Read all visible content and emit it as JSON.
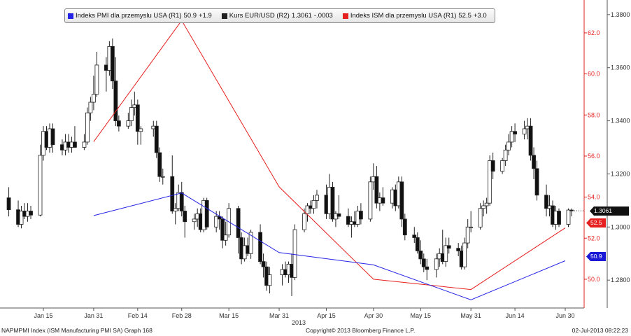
{
  "chart_data": {
    "type": "candlestick+line",
    "legend": [
      {
        "label": "Indeks PMI dla przemyslu USA (R1)",
        "value": "50.9",
        "change": "+1.9",
        "color": "#2323e6"
      },
      {
        "label": "Kurs EUR/USD (R2)",
        "value": "1.3061",
        "change": "-.0003",
        "color": "#222222"
      },
      {
        "label": "Indeks ISM dla przemyslu USA (R1)",
        "value": "52.5",
        "change": "+3.0",
        "color": "#e62020"
      }
    ],
    "x_ticks": [
      "Jan 15",
      "Jan 31",
      "Feb 14",
      "Feb 28",
      "Mar 15",
      "Mar 31",
      "Apr 15",
      "Apr 30",
      "May 15",
      "May 31",
      "Jun 14",
      "Jun 30"
    ],
    "x_year_label": "2013",
    "axis_r1": {
      "ylim": [
        48.6,
        63.6
      ],
      "ticks": [
        "50.0",
        "52.0",
        "54.0",
        "56.0",
        "58.0",
        "60.0",
        "62.0"
      ],
      "color": "#e62020"
    },
    "axis_r2": {
      "ylim": [
        1.2695,
        1.3855
      ],
      "ticks": [
        "1.2800",
        "1.3000",
        "1.3200",
        "1.3400",
        "1.3600",
        "1.3800"
      ]
    },
    "pmi_series": {
      "name": "Indeks PMI dla przemyslu USA (R1)",
      "x": [
        "2013-01-31",
        "2013-02-28",
        "2013-03-31",
        "2013-04-30",
        "2013-05-31",
        "2013-06-30"
      ],
      "y": [
        53.1,
        54.2,
        51.3,
        50.7,
        49.0,
        50.9
      ]
    },
    "ism_series": {
      "name": "Indeks ISM dla przemyslu USA (R1)",
      "x": [
        "2013-01-31",
        "2013-02-28",
        "2013-03-31",
        "2013-04-30",
        "2013-05-31",
        "2013-06-30"
      ],
      "y": [
        56.7,
        62.6,
        54.5,
        50.0,
        49.5,
        52.5
      ]
    },
    "candles": [
      {
        "d": "2013-01-04",
        "o": 1.311,
        "h": 1.315,
        "l": 1.304,
        "c": 1.3065
      },
      {
        "d": "2013-01-07",
        "o": 1.3065,
        "h": 1.31,
        "l": 1.3,
        "c": 1.301
      },
      {
        "d": "2013-01-08",
        "o": 1.301,
        "h": 1.308,
        "l": 1.2995,
        "c": 1.306
      },
      {
        "d": "2013-01-09",
        "o": 1.306,
        "h": 1.309,
        "l": 1.303,
        "c": 1.304
      },
      {
        "d": "2013-01-10",
        "o": 1.304,
        "h": 1.309,
        "l": 1.302,
        "c": 1.306
      },
      {
        "d": "2013-01-11",
        "o": 1.306,
        "h": 1.308,
        "l": 1.303,
        "c": 1.3045
      },
      {
        "d": "2013-01-14",
        "o": 1.3045,
        "h": 1.331,
        "l": 1.304,
        "c": 1.327
      },
      {
        "d": "2013-01-15",
        "o": 1.327,
        "h": 1.338,
        "l": 1.325,
        "c": 1.336
      },
      {
        "d": "2013-01-16",
        "o": 1.336,
        "h": 1.338,
        "l": 1.329,
        "c": 1.33
      },
      {
        "d": "2013-01-17",
        "o": 1.33,
        "h": 1.339,
        "l": 1.328,
        "c": 1.337
      },
      {
        "d": "2013-01-18",
        "o": 1.337,
        "h": 1.339,
        "l": 1.328,
        "c": 1.331
      },
      {
        "d": "2013-01-21",
        "o": 1.331,
        "h": 1.333,
        "l": 1.327,
        "c": 1.329
      },
      {
        "d": "2013-01-22",
        "o": 1.329,
        "h": 1.335,
        "l": 1.327,
        "c": 1.332
      },
      {
        "d": "2013-01-23",
        "o": 1.332,
        "h": 1.335,
        "l": 1.328,
        "c": 1.33
      },
      {
        "d": "2013-01-24",
        "o": 1.33,
        "h": 1.334,
        "l": 1.328,
        "c": 1.332
      },
      {
        "d": "2013-01-25",
        "o": 1.332,
        "h": 1.338,
        "l": 1.33,
        "c": 1.33
      },
      {
        "d": "2013-01-28",
        "o": 1.33,
        "h": 1.335,
        "l": 1.329,
        "c": 1.332
      },
      {
        "d": "2013-01-29",
        "o": 1.332,
        "h": 1.345,
        "l": 1.331,
        "c": 1.343
      },
      {
        "d": "2013-01-30",
        "o": 1.343,
        "h": 1.349,
        "l": 1.34,
        "c": 1.347
      },
      {
        "d": "2013-01-31",
        "o": 1.347,
        "h": 1.357,
        "l": 1.344,
        "c": 1.35
      },
      {
        "d": "2013-02-01",
        "o": 1.35,
        "h": 1.366,
        "l": 1.349,
        "c": 1.361
      },
      {
        "d": "2013-02-04",
        "o": 1.361,
        "h": 1.364,
        "l": 1.351,
        "c": 1.359
      },
      {
        "d": "2013-02-05",
        "o": 1.359,
        "h": 1.37,
        "l": 1.357,
        "c": 1.368
      },
      {
        "d": "2013-02-06",
        "o": 1.368,
        "h": 1.371,
        "l": 1.352,
        "c": 1.355
      },
      {
        "d": "2013-02-07",
        "o": 1.355,
        "h": 1.364,
        "l": 1.338,
        "c": 1.34
      },
      {
        "d": "2013-02-08",
        "o": 1.34,
        "h": 1.342,
        "l": 1.336,
        "c": 1.338
      },
      {
        "d": "2013-02-11",
        "o": 1.338,
        "h": 1.343,
        "l": 1.337,
        "c": 1.34
      },
      {
        "d": "2013-02-12",
        "o": 1.34,
        "h": 1.348,
        "l": 1.338,
        "c": 1.345
      },
      {
        "d": "2013-02-13",
        "o": 1.345,
        "h": 1.351,
        "l": 1.342,
        "c": 1.346
      },
      {
        "d": "2013-02-14",
        "o": 1.346,
        "h": 1.348,
        "l": 1.331,
        "c": 1.336
      },
      {
        "d": "2013-02-15",
        "o": 1.336,
        "h": 1.338,
        "l": 1.331,
        "c": 1.337
      },
      {
        "d": "2013-02-19",
        "o": 1.337,
        "h": 1.34,
        "l": 1.334,
        "c": 1.338
      },
      {
        "d": "2013-02-20",
        "o": 1.338,
        "h": 1.34,
        "l": 1.326,
        "c": 1.328
      },
      {
        "d": "2013-02-21",
        "o": 1.328,
        "h": 1.33,
        "l": 1.317,
        "c": 1.319
      },
      {
        "d": "2013-02-22",
        "o": 1.319,
        "h": 1.322,
        "l": 1.316,
        "c": 1.319
      },
      {
        "d": "2013-02-25",
        "o": 1.319,
        "h": 1.327,
        "l": 1.305,
        "c": 1.306
      },
      {
        "d": "2013-02-26",
        "o": 1.306,
        "h": 1.309,
        "l": 1.301,
        "c": 1.307
      },
      {
        "d": "2013-02-27",
        "o": 1.307,
        "h": 1.316,
        "l": 1.306,
        "c": 1.313
      },
      {
        "d": "2013-02-28",
        "o": 1.313,
        "h": 1.317,
        "l": 1.304,
        "c": 1.306
      },
      {
        "d": "2013-03-01",
        "o": 1.306,
        "h": 1.308,
        "l": 1.296,
        "c": 1.302
      },
      {
        "d": "2013-03-04",
        "o": 1.302,
        "h": 1.305,
        "l": 1.299,
        "c": 1.303
      },
      {
        "d": "2013-03-05",
        "o": 1.303,
        "h": 1.307,
        "l": 1.3,
        "c": 1.305
      },
      {
        "d": "2013-03-06",
        "o": 1.305,
        "h": 1.307,
        "l": 1.298,
        "c": 1.299
      },
      {
        "d": "2013-03-07",
        "o": 1.299,
        "h": 1.311,
        "l": 1.298,
        "c": 1.31
      },
      {
        "d": "2013-03-08",
        "o": 1.31,
        "h": 1.311,
        "l": 1.299,
        "c": 1.3
      },
      {
        "d": "2013-03-11",
        "o": 1.3,
        "h": 1.306,
        "l": 1.298,
        "c": 1.304
      },
      {
        "d": "2013-03-12",
        "o": 1.304,
        "h": 1.306,
        "l": 1.299,
        "c": 1.303
      },
      {
        "d": "2013-03-13",
        "o": 1.303,
        "h": 1.304,
        "l": 1.292,
        "c": 1.295
      },
      {
        "d": "2013-03-14",
        "o": 1.295,
        "h": 1.302,
        "l": 1.293,
        "c": 1.297
      },
      {
        "d": "2013-03-15",
        "o": 1.297,
        "h": 1.309,
        "l": 1.296,
        "c": 1.307
      },
      {
        "d": "2013-03-18",
        "o": 1.307,
        "h": 1.308,
        "l": 1.29,
        "c": 1.296
      },
      {
        "d": "2013-03-19",
        "o": 1.296,
        "h": 1.298,
        "l": 1.286,
        "c": 1.288
      },
      {
        "d": "2013-03-20",
        "o": 1.288,
        "h": 1.296,
        "l": 1.287,
        "c": 1.293
      },
      {
        "d": "2013-03-21",
        "o": 1.293,
        "h": 1.296,
        "l": 1.289,
        "c": 1.29
      },
      {
        "d": "2013-03-22",
        "o": 1.29,
        "h": 1.299,
        "l": 1.288,
        "c": 1.298
      },
      {
        "d": "2013-03-25",
        "o": 1.298,
        "h": 1.301,
        "l": 1.286,
        "c": 1.287
      },
      {
        "d": "2013-03-26",
        "o": 1.287,
        "h": 1.29,
        "l": 1.281,
        "c": 1.285
      },
      {
        "d": "2013-03-27",
        "o": 1.285,
        "h": 1.287,
        "l": 1.276,
        "c": 1.278
      },
      {
        "d": "2013-03-28",
        "o": 1.278,
        "h": 1.285,
        "l": 1.275,
        "c": 1.282
      },
      {
        "d": "2013-04-01",
        "o": 1.282,
        "h": 1.286,
        "l": 1.278,
        "c": 1.284
      },
      {
        "d": "2013-04-02",
        "o": 1.284,
        "h": 1.287,
        "l": 1.281,
        "c": 1.282
      },
      {
        "d": "2013-04-03",
        "o": 1.282,
        "h": 1.287,
        "l": 1.279,
        "c": 1.286
      },
      {
        "d": "2013-04-04",
        "o": 1.286,
        "h": 1.29,
        "l": 1.274,
        "c": 1.281
      },
      {
        "d": "2013-04-05",
        "o": 1.281,
        "h": 1.301,
        "l": 1.28,
        "c": 1.299
      },
      {
        "d": "2013-04-08",
        "o": 1.299,
        "h": 1.307,
        "l": 1.298,
        "c": 1.305
      },
      {
        "d": "2013-04-09",
        "o": 1.305,
        "h": 1.309,
        "l": 1.302,
        "c": 1.308
      },
      {
        "d": "2013-04-10",
        "o": 1.308,
        "h": 1.31,
        "l": 1.305,
        "c": 1.307
      },
      {
        "d": "2013-04-11",
        "o": 1.307,
        "h": 1.312,
        "l": 1.305,
        "c": 1.31
      },
      {
        "d": "2013-04-12",
        "o": 1.31,
        "h": 1.314,
        "l": 1.307,
        "c": 1.312
      },
      {
        "d": "2013-04-15",
        "o": 1.312,
        "h": 1.316,
        "l": 1.303,
        "c": 1.305
      },
      {
        "d": "2013-04-16",
        "o": 1.305,
        "h": 1.32,
        "l": 1.303,
        "c": 1.315
      },
      {
        "d": "2013-04-17",
        "o": 1.315,
        "h": 1.317,
        "l": 1.302,
        "c": 1.303
      },
      {
        "d": "2013-04-18",
        "o": 1.303,
        "h": 1.306,
        "l": 1.3,
        "c": 1.305
      },
      {
        "d": "2013-04-19",
        "o": 1.305,
        "h": 1.312,
        "l": 1.303,
        "c": 1.304
      },
      {
        "d": "2013-04-22",
        "o": 1.304,
        "h": 1.307,
        "l": 1.3,
        "c": 1.301
      },
      {
        "d": "2013-04-23",
        "o": 1.301,
        "h": 1.304,
        "l": 1.296,
        "c": 1.302
      },
      {
        "d": "2013-04-24",
        "o": 1.302,
        "h": 1.306,
        "l": 1.3,
        "c": 1.301
      },
      {
        "d": "2013-04-25",
        "o": 1.301,
        "h": 1.308,
        "l": 1.3,
        "c": 1.306
      },
      {
        "d": "2013-04-26",
        "o": 1.306,
        "h": 1.309,
        "l": 1.301,
        "c": 1.303
      },
      {
        "d": "2013-04-29",
        "o": 1.303,
        "h": 1.319,
        "l": 1.302,
        "c": 1.317
      },
      {
        "d": "2013-04-30",
        "o": 1.317,
        "h": 1.324,
        "l": 1.314,
        "c": 1.319
      },
      {
        "d": "2013-05-01",
        "o": 1.319,
        "h": 1.323,
        "l": 1.307,
        "c": 1.309
      },
      {
        "d": "2013-05-02",
        "o": 1.309,
        "h": 1.313,
        "l": 1.306,
        "c": 1.311
      },
      {
        "d": "2013-05-03",
        "o": 1.311,
        "h": 1.315,
        "l": 1.308,
        "c": 1.309
      },
      {
        "d": "2013-05-06",
        "o": 1.309,
        "h": 1.315,
        "l": 1.307,
        "c": 1.314
      },
      {
        "d": "2013-05-07",
        "o": 1.314,
        "h": 1.316,
        "l": 1.306,
        "c": 1.308
      },
      {
        "d": "2013-05-08",
        "o": 1.308,
        "h": 1.319,
        "l": 1.307,
        "c": 1.317
      },
      {
        "d": "2013-05-09",
        "o": 1.317,
        "h": 1.319,
        "l": 1.3,
        "c": 1.303
      },
      {
        "d": "2013-05-10",
        "o": 1.303,
        "h": 1.305,
        "l": 1.295,
        "c": 1.297
      },
      {
        "d": "2013-05-13",
        "o": 1.297,
        "h": 1.3,
        "l": 1.294,
        "c": 1.296
      },
      {
        "d": "2013-05-14",
        "o": 1.296,
        "h": 1.298,
        "l": 1.29,
        "c": 1.291
      },
      {
        "d": "2013-05-15",
        "o": 1.291,
        "h": 1.295,
        "l": 1.286,
        "c": 1.288
      },
      {
        "d": "2013-05-16",
        "o": 1.288,
        "h": 1.29,
        "l": 1.283,
        "c": 1.285
      },
      {
        "d": "2013-05-17",
        "o": 1.285,
        "h": 1.288,
        "l": 1.28,
        "c": 1.284
      },
      {
        "d": "2013-05-20",
        "o": 1.284,
        "h": 1.29,
        "l": 1.281,
        "c": 1.288
      },
      {
        "d": "2013-05-21",
        "o": 1.288,
        "h": 1.292,
        "l": 1.285,
        "c": 1.29
      },
      {
        "d": "2013-05-22",
        "o": 1.29,
        "h": 1.299,
        "l": 1.286,
        "c": 1.287
      },
      {
        "d": "2013-05-23",
        "o": 1.287,
        "h": 1.296,
        "l": 1.285,
        "c": 1.293
      },
      {
        "d": "2013-05-24",
        "o": 1.293,
        "h": 1.296,
        "l": 1.29,
        "c": 1.292
      },
      {
        "d": "2013-05-27",
        "o": 1.292,
        "h": 1.294,
        "l": 1.289,
        "c": 1.291
      },
      {
        "d": "2013-05-28",
        "o": 1.291,
        "h": 1.293,
        "l": 1.284,
        "c": 1.285
      },
      {
        "d": "2013-05-29",
        "o": 1.285,
        "h": 1.296,
        "l": 1.284,
        "c": 1.294
      },
      {
        "d": "2013-05-30",
        "o": 1.294,
        "h": 1.303,
        "l": 1.292,
        "c": 1.3
      },
      {
        "d": "2013-05-31",
        "o": 1.3,
        "h": 1.306,
        "l": 1.298,
        "c": 1.3
      },
      {
        "d": "2013-06-03",
        "o": 1.3,
        "h": 1.309,
        "l": 1.299,
        "c": 1.307
      },
      {
        "d": "2013-06-04",
        "o": 1.307,
        "h": 1.31,
        "l": 1.304,
        "c": 1.308
      },
      {
        "d": "2013-06-05",
        "o": 1.308,
        "h": 1.311,
        "l": 1.305,
        "c": 1.309
      },
      {
        "d": "2013-06-06",
        "o": 1.309,
        "h": 1.327,
        "l": 1.308,
        "c": 1.325
      },
      {
        "d": "2013-06-07",
        "o": 1.325,
        "h": 1.328,
        "l": 1.318,
        "c": 1.321
      },
      {
        "d": "2013-06-10",
        "o": 1.321,
        "h": 1.326,
        "l": 1.32,
        "c": 1.325
      },
      {
        "d": "2013-06-11",
        "o": 1.325,
        "h": 1.331,
        "l": 1.323,
        "c": 1.329
      },
      {
        "d": "2013-06-12",
        "o": 1.329,
        "h": 1.335,
        "l": 1.327,
        "c": 1.332
      },
      {
        "d": "2013-06-13",
        "o": 1.332,
        "h": 1.338,
        "l": 1.33,
        "c": 1.336
      },
      {
        "d": "2013-06-14",
        "o": 1.336,
        "h": 1.339,
        "l": 1.332,
        "c": 1.335
      },
      {
        "d": "2013-06-17",
        "o": 1.335,
        "h": 1.34,
        "l": 1.333,
        "c": 1.337
      },
      {
        "d": "2013-06-18",
        "o": 1.337,
        "h": 1.341,
        "l": 1.333,
        "c": 1.338
      },
      {
        "d": "2013-06-19",
        "o": 1.338,
        "h": 1.341,
        "l": 1.325,
        "c": 1.327
      },
      {
        "d": "2013-06-20",
        "o": 1.327,
        "h": 1.33,
        "l": 1.318,
        "c": 1.322
      },
      {
        "d": "2013-06-21",
        "o": 1.322,
        "h": 1.325,
        "l": 1.31,
        "c": 1.312
      },
      {
        "d": "2013-06-24",
        "o": 1.312,
        "h": 1.316,
        "l": 1.304,
        "c": 1.307
      },
      {
        "d": "2013-06-25",
        "o": 1.307,
        "h": 1.312,
        "l": 1.304,
        "c": 1.308
      },
      {
        "d": "2013-06-26",
        "o": 1.308,
        "h": 1.31,
        "l": 1.3,
        "c": 1.301
      },
      {
        "d": "2013-06-27",
        "o": 1.301,
        "h": 1.308,
        "l": 1.299,
        "c": 1.306
      },
      {
        "d": "2013-06-28",
        "o": 1.306,
        "h": 1.307,
        "l": 1.3,
        "c": 1.301
      },
      {
        "d": "2013-07-01",
        "o": 1.301,
        "h": 1.307,
        "l": 1.3,
        "c": 1.3064
      },
      {
        "d": "2013-07-02",
        "o": 1.3064,
        "h": 1.307,
        "l": 1.304,
        "c": 1.3061
      }
    ]
  },
  "tags": {
    "eurusd": {
      "value": "1.3061",
      "color": "#111111"
    },
    "ism": {
      "value": "52.5",
      "color": "#e62020"
    },
    "pmi": {
      "value": "50.9",
      "color": "#1a1ad6"
    }
  },
  "footer": {
    "left": "NAPMPMI Index (ISM Manufacturing PMI SA) Graph 168",
    "center": "Copyright© 2013 Bloomberg Finance L.P.",
    "right": "02-Jul-2013 08:22:23"
  }
}
